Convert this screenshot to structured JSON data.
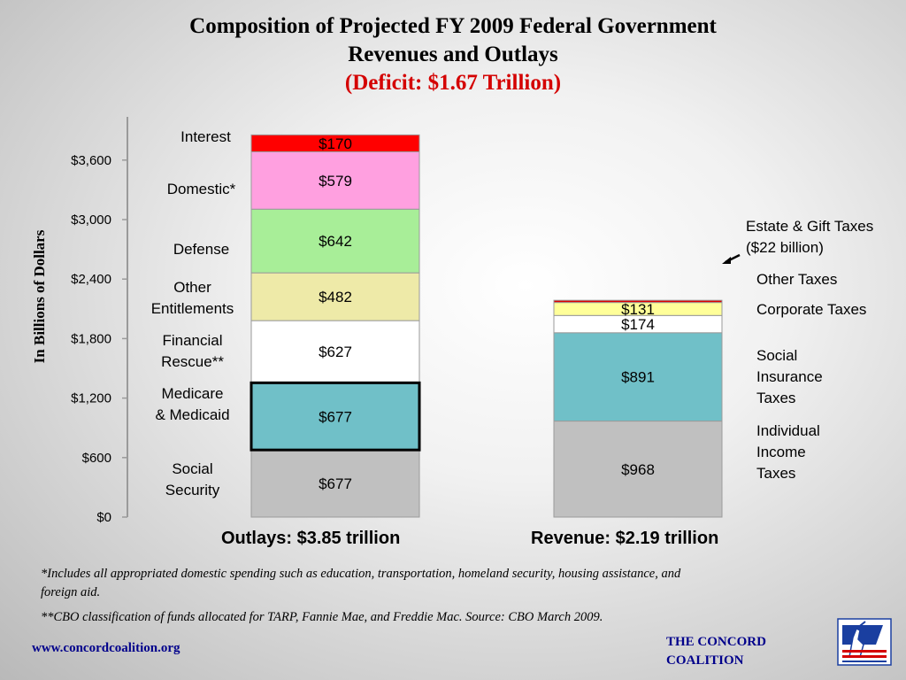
{
  "title": {
    "line1": "Composition of Projected FY 2009 Federal Government",
    "line2": "Revenues and Outlays",
    "line3": "(Deficit: $1.67 Trillion)"
  },
  "chart_data": {
    "type": "bar",
    "stacked": true,
    "ylabel": "In Billions of Dollars",
    "ylim": [
      0,
      3900
    ],
    "yticks": [
      0,
      600,
      1200,
      1800,
      2400,
      3000,
      3600
    ],
    "ytick_labels": [
      "$0",
      "$600",
      "$1,200",
      "$1,800",
      "$2,400",
      "$3,000",
      "$3,600"
    ],
    "grid": false,
    "categories": [
      "Outlays: $3.85 trillion",
      "Revenue: $2.19 trillion"
    ],
    "stacks": [
      {
        "category": "Outlays: $3.85 trillion",
        "segments": [
          {
            "name": "Social\nSecurity",
            "value": 677,
            "label": "$677",
            "color": "#c0c0c0"
          },
          {
            "name": "Medicare\n& Medicaid",
            "value": 677,
            "label": "$677",
            "color": "#70c0c8",
            "outline": "#000000"
          },
          {
            "name": "Financial\nRescue**",
            "value": 627,
            "label": "$627",
            "color": "#ffffff"
          },
          {
            "name": "Other\nEntitlements",
            "value": 482,
            "label": "$482",
            "color": "#eeeaa8"
          },
          {
            "name": "Defense",
            "value": 642,
            "label": "$642",
            "color": "#a8ee98"
          },
          {
            "name": "Domestic*",
            "value": 579,
            "label": "$579",
            "color": "#ffa0e0"
          },
          {
            "name": "Interest",
            "value": 170,
            "label": "$170",
            "color": "#ff0000"
          }
        ]
      },
      {
        "category": "Revenue: $2.19 trillion",
        "segments": [
          {
            "name": "Individual\nIncome\nTaxes",
            "value": 968,
            "label": "$968",
            "color": "#c0c0c0"
          },
          {
            "name": "Social\nInsurance\nTaxes",
            "value": 891,
            "label": "$891",
            "color": "#70c0c8"
          },
          {
            "name": "Corporate Taxes",
            "value": 174,
            "label": "$174",
            "color": "#ffffff"
          },
          {
            "name": "Other Taxes",
            "value": 131,
            "label": "$131",
            "color": "#ffff99"
          },
          {
            "name": "Estate & Gift Taxes\n($22 billion)",
            "value": 22,
            "label": "",
            "color": "#e00000"
          }
        ]
      }
    ]
  },
  "footnotes": {
    "note1": "*Includes all appropriated domestic spending such as education, transportation, homeland security, housing assistance, and foreign aid.",
    "note2": "**CBO classification of funds allocated for TARP, Fannie Mae, and Freddie Mac. Source: CBO March 2009."
  },
  "footer": {
    "url": "www.concordcoalition.org",
    "org_line1": "THE CONCORD",
    "org_line2": "COALITION"
  },
  "colors": {
    "title": "#000000",
    "deficit": "#d40000",
    "footer_text": "#00008b"
  }
}
